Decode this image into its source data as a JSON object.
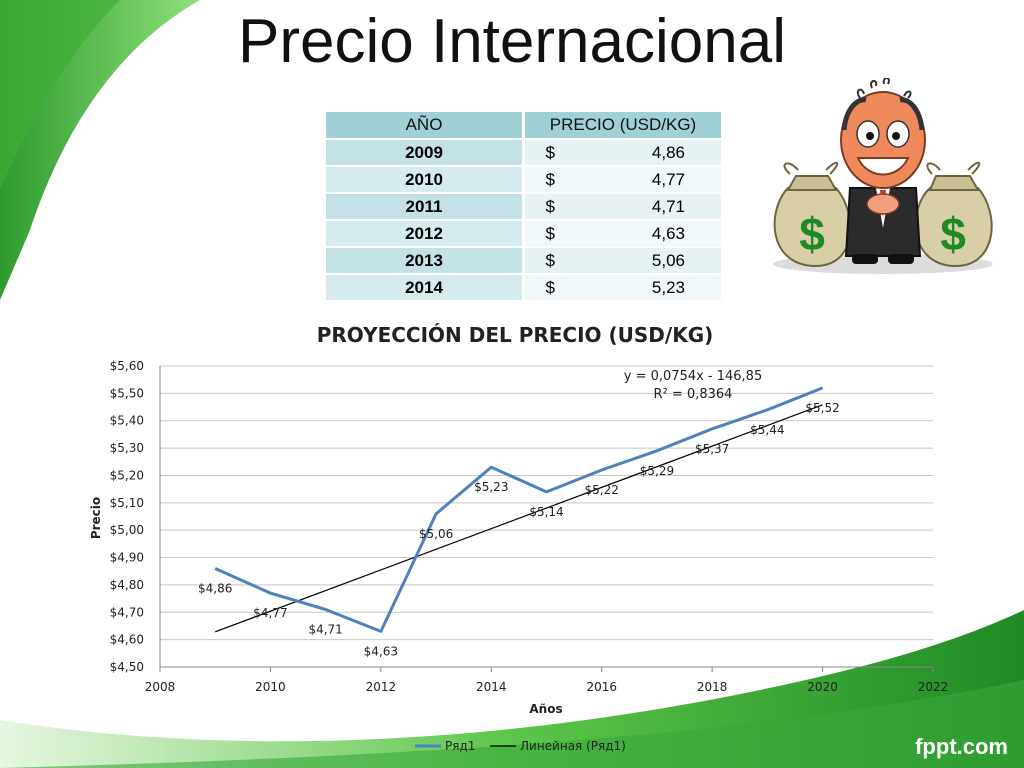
{
  "slide": {
    "title": "Precio Internacional",
    "logo": "fppt.com"
  },
  "table": {
    "headers": [
      "AÑO",
      "PRECIO (USD/KG)"
    ],
    "currency": "$",
    "rows": [
      {
        "year": "2009",
        "price": "4,86"
      },
      {
        "year": "2010",
        "price": "4,77"
      },
      {
        "year": "2011",
        "price": "4,71"
      },
      {
        "year": "2012",
        "price": "4,63"
      },
      {
        "year": "2013",
        "price": "5,06"
      },
      {
        "year": "2014",
        "price": "5,23"
      }
    ]
  },
  "illustration": {
    "symbol": "$"
  },
  "chart_data": {
    "type": "line",
    "title": "PROYECCIÓN DEL PRECIO (USD/KG)",
    "xlabel": "Años",
    "ylabel": "Precio",
    "xlim": [
      2008,
      2022
    ],
    "ylim": [
      4.5,
      5.6
    ],
    "xticks": [
      "2008",
      "2010",
      "2012",
      "2014",
      "2016",
      "2018",
      "2020",
      "2022"
    ],
    "yticks": [
      "$4,50",
      "$4,60",
      "$4,70",
      "$4,80",
      "$4,90",
      "$5,00",
      "$5,10",
      "$5,20",
      "$5,30",
      "$5,40",
      "$5,50",
      "$5,60"
    ],
    "series": [
      {
        "name": "Ряд1",
        "color": "#4f81bd",
        "x": [
          2009,
          2010,
          2011,
          2012,
          2013,
          2014,
          2015,
          2016,
          2017,
          2018,
          2019,
          2020
        ],
        "y": [
          4.86,
          4.77,
          4.71,
          4.63,
          5.06,
          5.23,
          5.14,
          5.22,
          5.29,
          5.37,
          5.44,
          5.52
        ],
        "labels": [
          "$4,86",
          "$4,77",
          "$4,71",
          "$4,63",
          "$5,06",
          "$5,23",
          "$5,14",
          "$5,22",
          "$5,29",
          "$5,37",
          "$5,44",
          "$5,52"
        ]
      }
    ],
    "trendline": {
      "name": "Линейная (Ряд1)",
      "color": "#000000",
      "slope": 0.0754,
      "intercept": -146.85,
      "x_range": [
        2009,
        2020
      ],
      "equation": "y = 0,0754x - 146,85",
      "r2": "R² = 0,8364"
    },
    "grid": "horizontal",
    "legend": "bottom"
  }
}
